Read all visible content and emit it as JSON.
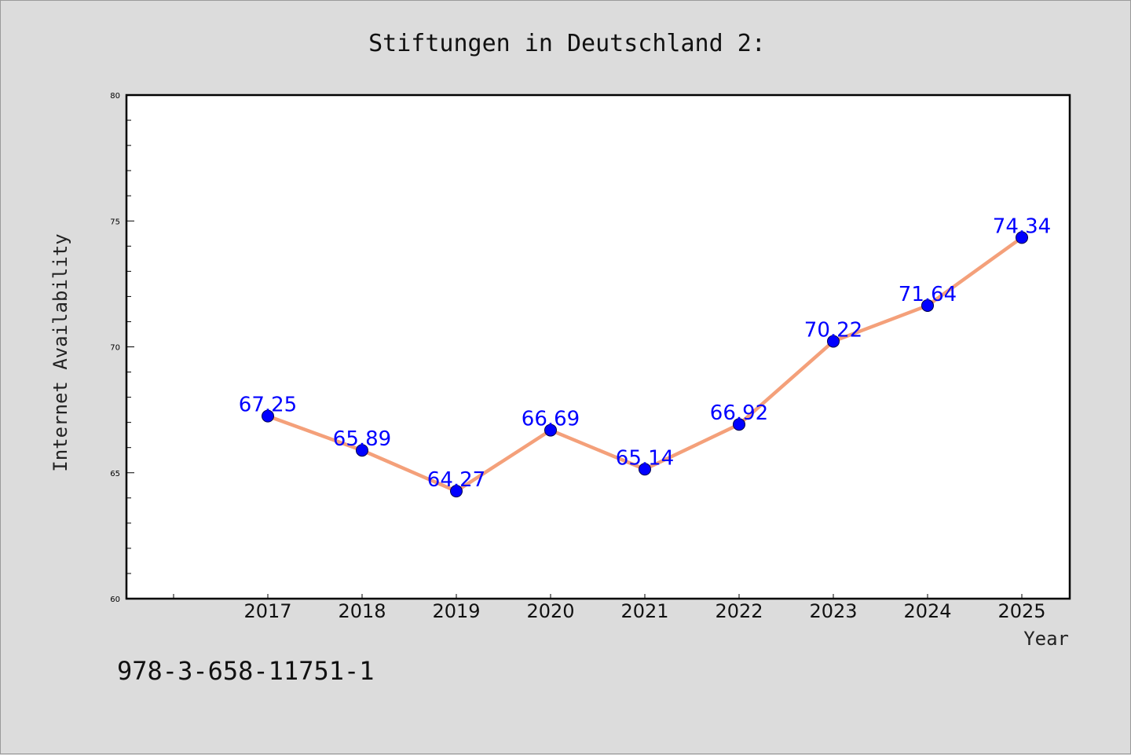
{
  "chart_data": {
    "type": "line",
    "title": "Stiftungen in Deutschland 2:",
    "xlabel": "Year",
    "ylabel": "Internet Availability",
    "categories": [
      "2017",
      "2018",
      "2019",
      "2020",
      "2021",
      "2022",
      "2023",
      "2024",
      "2025"
    ],
    "series": [
      {
        "values": [
          67.25,
          65.89,
          64.27,
          66.69,
          65.14,
          66.92,
          70.22,
          71.64,
          74.34
        ],
        "data_labels": [
          "67.25",
          "65.89",
          "64.27",
          "66.69",
          "65.14",
          "66.92",
          "70.22",
          "71.64",
          "74.34"
        ],
        "line_color": "#f4a07a",
        "marker_color": "#0000ff"
      }
    ],
    "ylim": [
      60,
      80
    ],
    "yticks": [
      "60",
      "65",
      "70",
      "75",
      "80"
    ],
    "grid": false,
    "legend": "none",
    "background_color": "#dcdcdc",
    "plot_background_color": "#ffffff"
  },
  "footnote": "978-3-658-11751-1"
}
